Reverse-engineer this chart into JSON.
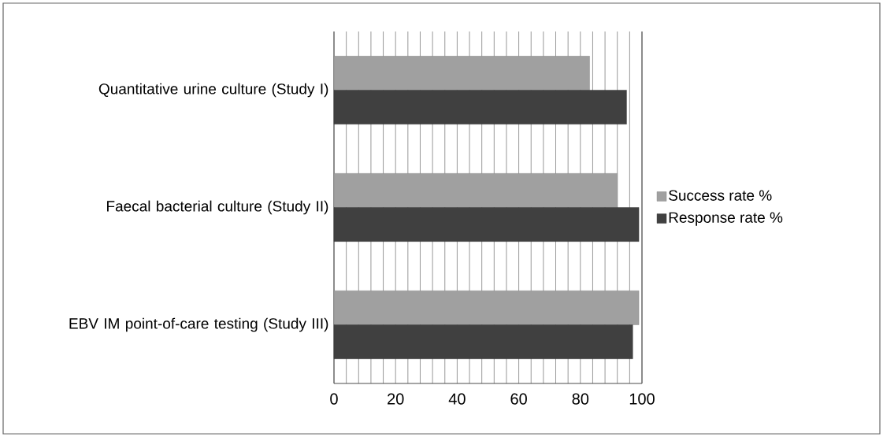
{
  "chart_data": {
    "type": "bar",
    "orientation": "horizontal",
    "categories": [
      "Quantitative urine culture (Study I)",
      "Faecal bacterial culture (Study II)",
      "EBV IM point-of-care testing (Study III)"
    ],
    "series": [
      {
        "name": "Success rate %",
        "color": "#a0a0a0",
        "values": [
          83,
          92,
          99
        ]
      },
      {
        "name": "Response rate %",
        "color": "#404040",
        "values": [
          95,
          99,
          97
        ]
      }
    ],
    "xlim": [
      0,
      100
    ],
    "xticks": [
      0,
      {
        "value": 4,
        "label": null
      },
      {
        "value": 8,
        "label": null
      },
      {
        "value": 12,
        "label": null
      },
      {
        "value": 16,
        "label": null
      },
      20,
      {
        "value": 24,
        "label": null
      },
      {
        "value": 28,
        "label": null
      },
      {
        "value": 32,
        "label": null
      },
      {
        "value": 36,
        "label": null
      },
      40,
      {
        "value": 44,
        "label": null
      },
      {
        "value": 48,
        "label": null
      },
      {
        "value": 52,
        "label": null
      },
      {
        "value": 56,
        "label": null
      },
      60,
      {
        "value": 64,
        "label": null
      },
      {
        "value": 68,
        "label": null
      },
      {
        "value": 72,
        "label": null
      },
      {
        "value": 76,
        "label": null
      },
      80,
      {
        "value": 84,
        "label": null
      },
      {
        "value": 88,
        "label": null
      },
      {
        "value": 92,
        "label": null
      },
      {
        "value": 96,
        "label": null
      },
      100
    ],
    "grid": "x",
    "legend": "right"
  }
}
